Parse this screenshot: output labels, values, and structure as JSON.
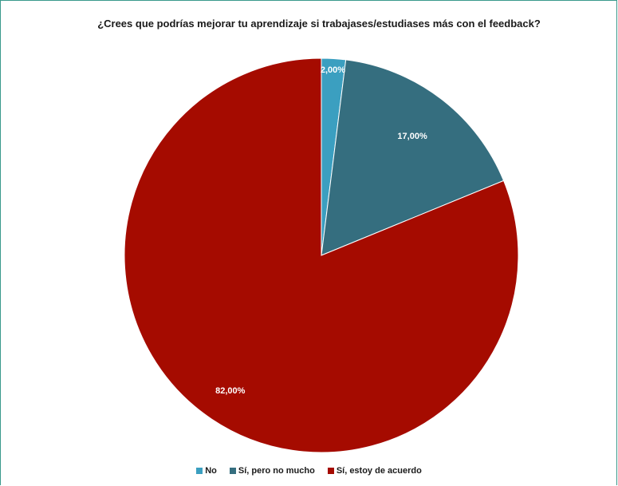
{
  "chart_data": {
    "type": "pie",
    "title": "¿Crees que podrías mejorar tu aprendizaje si trabajases/estudiases más con el feedback?",
    "slices": [
      {
        "name": "No",
        "value": 2.0,
        "label": "2,00%",
        "color": "#3b9fc0"
      },
      {
        "name": "Sí, pero no mucho",
        "value": 17.0,
        "label": "17,00%",
        "color": "#356e7f"
      },
      {
        "name": "Sí, estoy de acuerdo",
        "value": 82.0,
        "label": "82,00%",
        "color": "#a50b00"
      }
    ],
    "legend_position": "bottom"
  }
}
